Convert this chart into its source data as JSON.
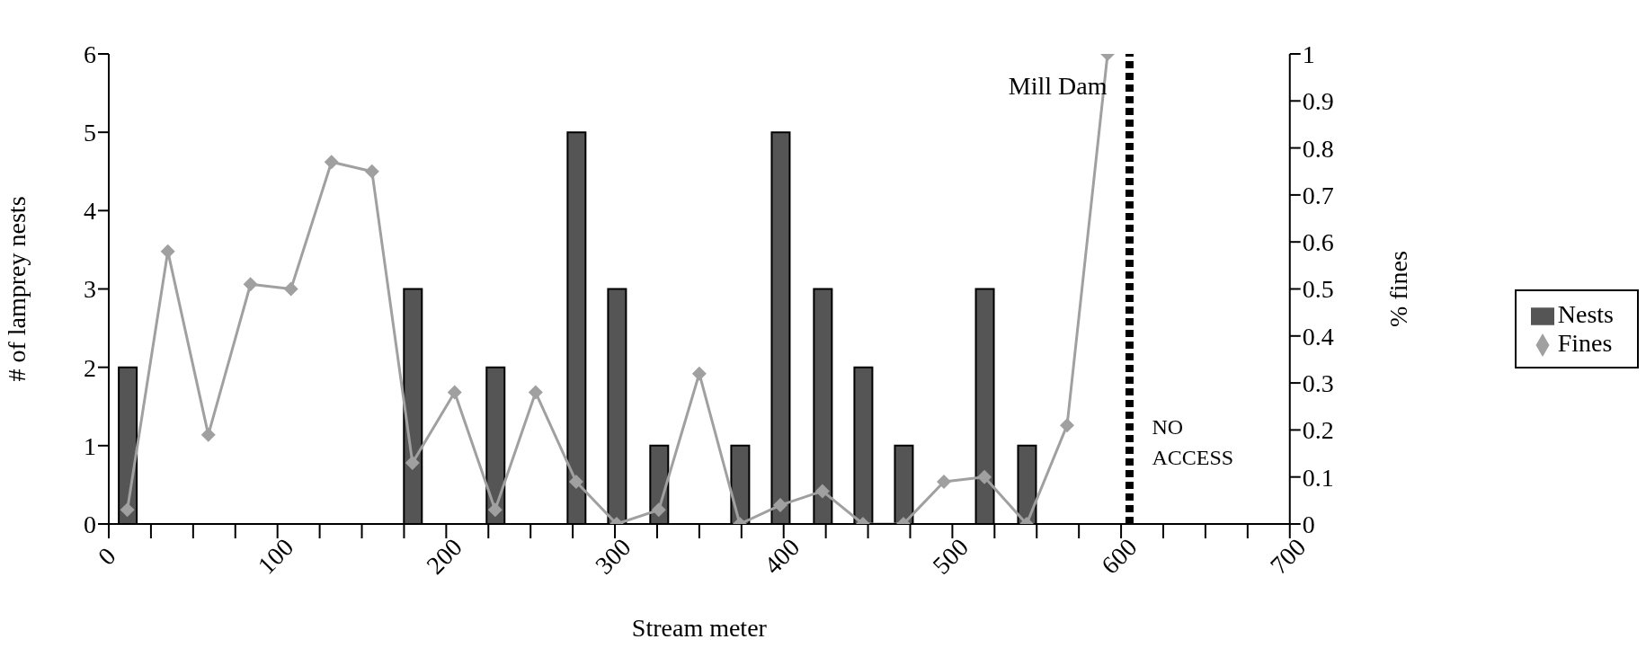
{
  "chart_data": {
    "type": "bar",
    "xlabel": "Stream meter",
    "ylabel": "# of lamprey nests",
    "y2label": "% fines",
    "x": [
      11,
      35,
      59,
      84,
      108,
      132,
      156,
      180,
      205,
      229,
      253,
      277,
      301,
      326,
      350,
      374,
      398,
      423,
      447,
      471,
      495,
      519,
      544,
      568,
      592
    ],
    "series": [
      {
        "name": "Nests",
        "color": "#555555",
        "values": [
          2,
          null,
          null,
          null,
          null,
          null,
          null,
          3,
          null,
          2,
          null,
          5,
          3,
          1,
          null,
          1,
          5,
          3,
          2,
          1,
          null,
          3,
          1,
          null,
          null
        ]
      },
      {
        "name": "Fines",
        "type": "line",
        "axis": "y2",
        "color": "#a0a0a0",
        "marker": "diamond",
        "values": [
          0.03,
          0.58,
          0.19,
          0.51,
          0.5,
          0.77,
          0.75,
          0.13,
          0.28,
          0.03,
          0.28,
          0.09,
          0.0,
          0.03,
          0.32,
          0.0,
          0.04,
          0.07,
          0.0,
          0.0,
          0.09,
          0.1,
          0.0,
          0.21,
          1.0
        ]
      }
    ],
    "xlim": [
      0,
      700
    ],
    "xticks": [
      0,
      {
        "value": 25,
        "label": null
      },
      100,
      {
        "value": 50,
        "label": null
      },
      {
        "value": 75,
        "label": null
      },
      {
        "value": 125,
        "label": null
      },
      {
        "value": 150,
        "label": null
      },
      {
        "value": 175,
        "label": null
      },
      200,
      {
        "value": 225,
        "label": null
      },
      {
        "value": 250,
        "label": null
      },
      {
        "value": 275,
        "label": null
      },
      300,
      {
        "value": 325,
        "label": null
      },
      {
        "value": 350,
        "label": null
      },
      {
        "value": 375,
        "label": null
      },
      400,
      {
        "value": 425,
        "label": null
      },
      {
        "value": 450,
        "label": null
      },
      {
        "value": 475,
        "label": null
      },
      500,
      {
        "value": 525,
        "label": null
      },
      {
        "value": 550,
        "label": null
      },
      {
        "value": 575,
        "label": null
      },
      600,
      {
        "value": 625,
        "label": null
      },
      {
        "value": 650,
        "label": null
      },
      {
        "value": 675,
        "label": null
      },
      700
    ],
    "ylim": [
      0,
      6
    ],
    "yticks": [
      0,
      1,
      2,
      3,
      4,
      5,
      6
    ],
    "y2lim": [
      0,
      1
    ],
    "y2ticks": [
      0,
      0.1,
      0.2,
      0.3,
      0.4,
      0.5,
      0.6,
      0.7,
      0.8,
      0.9,
      1
    ],
    "ref_lines": [
      {
        "axis": "x",
        "value": 605,
        "label": "Mill Dam",
        "color": "#000000",
        "line_style": "dotted"
      }
    ],
    "annotations": [
      "NO ACCESS"
    ],
    "grid": false,
    "legend": "right"
  }
}
